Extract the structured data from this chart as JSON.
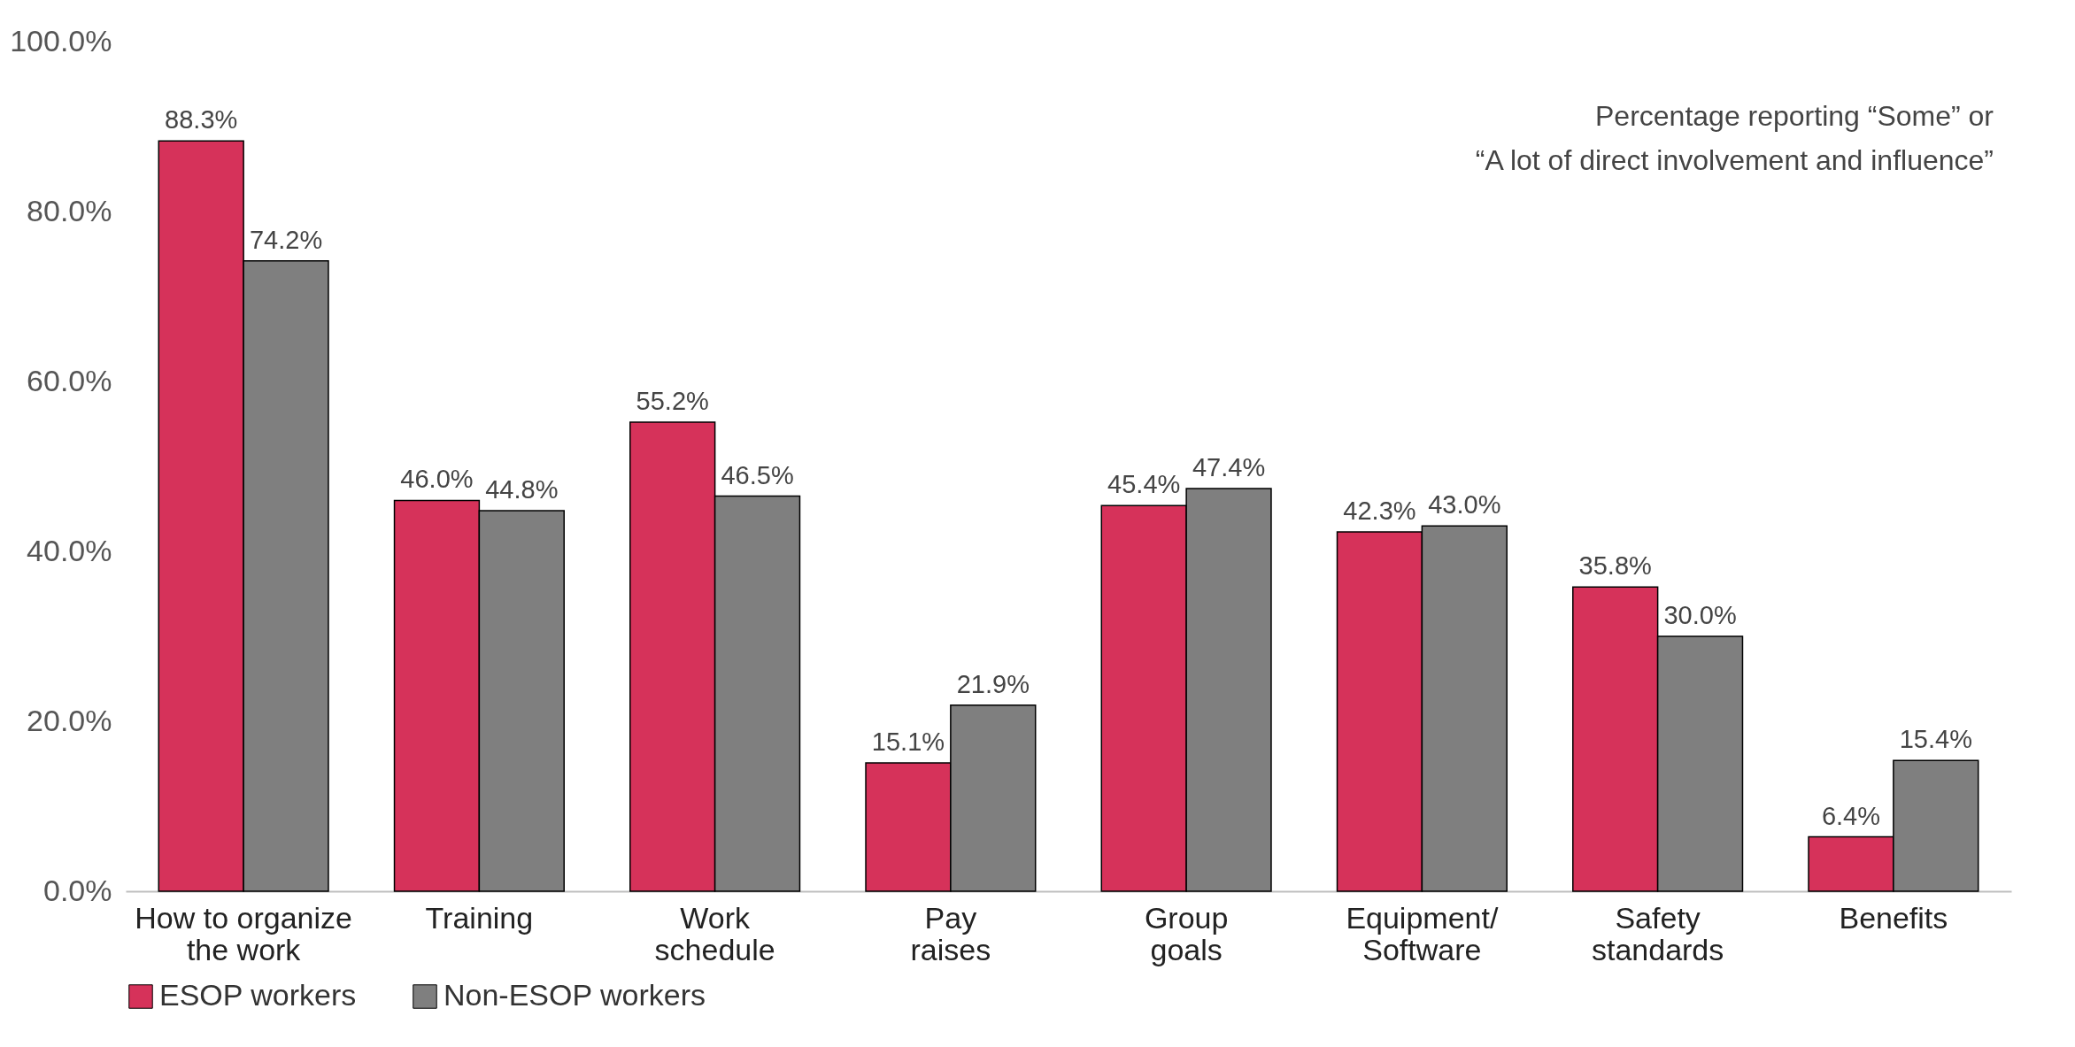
{
  "chart_data": {
    "type": "bar",
    "categories": [
      "How to organize\nthe work",
      "Training",
      "Work\nschedule",
      "Pay\nraises",
      "Group\ngoals",
      "Equipment/\nSoftware",
      "Safety\nstandards",
      "Benefits"
    ],
    "series": [
      {
        "name": "ESOP workers",
        "color": "#d6325a",
        "values": [
          88.3,
          46.0,
          55.2,
          15.1,
          45.4,
          42.3,
          35.8,
          6.4
        ],
        "value_labels": [
          "88.3%",
          "46.0%",
          "55.2%",
          "15.1%",
          "45.4%",
          "42.3%",
          "35.8%",
          "6.4%"
        ]
      },
      {
        "name": "Non-ESOP workers",
        "color": "#7f7f7f",
        "values": [
          74.2,
          44.8,
          46.5,
          21.9,
          47.4,
          43.0,
          30.0,
          15.4
        ],
        "value_labels": [
          "74.2%",
          "44.8%",
          "46.5%",
          "21.9%",
          "47.4%",
          "43.0%",
          "30.0%",
          "15.4%"
        ]
      }
    ],
    "ylim": [
      0,
      100
    ],
    "yticks": [
      {
        "value": 0,
        "label": "0.0%"
      },
      {
        "value": 20,
        "label": "20.0%"
      },
      {
        "value": 40,
        "label": "40.0%"
      },
      {
        "value": 60,
        "label": "60.0%"
      },
      {
        "value": 80,
        "label": "80.0%"
      },
      {
        "value": 100,
        "label": "100.0%"
      }
    ],
    "annotations": [
      "Percentage reporting “Some” or\n“A lot of direct involvement and influence”"
    ],
    "grid": false,
    "legend": "bottom"
  }
}
